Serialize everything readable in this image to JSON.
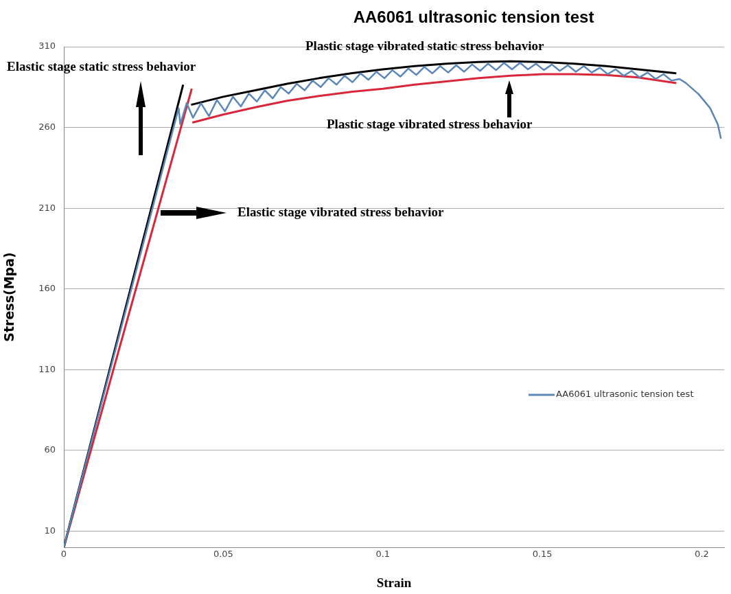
{
  "chart_data": {
    "type": "line",
    "title": "AA6061 ultrasonic tension test",
    "xlabel": "Strain",
    "ylabel": "Stress(Mpa)",
    "xlim": [
      0,
      0.207
    ],
    "xticks": [
      0,
      0.05,
      0.1,
      0.15,
      0.2
    ],
    "ylim": [
      0,
      310
    ],
    "yticks": [
      10,
      60,
      110,
      160,
      210,
      260,
      310
    ],
    "grid": "y",
    "legend": "right",
    "marker": "none",
    "line_style": "solid",
    "annotations": [
      "Elastic stage static stress behavior",
      "Plastic stage vibrated static stress behavior",
      "Plastic stage vibrated stress behavior",
      "Elastic stage vibrated stress behavior"
    ],
    "series": [
      {
        "name": "AA6061 ultrasonic tension test",
        "color": "#5b87b8",
        "x": [
          0,
          0.036,
          0.0365,
          0.0385,
          0.0405,
          0.043,
          0.0455,
          0.048,
          0.0505,
          0.053,
          0.0555,
          0.058,
          0.0605,
          0.063,
          0.0655,
          0.068,
          0.0705,
          0.073,
          0.0755,
          0.078,
          0.0805,
          0.083,
          0.0855,
          0.088,
          0.0905,
          0.093,
          0.0955,
          0.098,
          0.1005,
          0.103,
          0.1055,
          0.108,
          0.1105,
          0.113,
          0.1155,
          0.118,
          0.1205,
          0.123,
          0.1255,
          0.128,
          0.1305,
          0.133,
          0.1355,
          0.138,
          0.1405,
          0.143,
          0.1455,
          0.148,
          0.1505,
          0.153,
          0.1555,
          0.158,
          0.1605,
          0.163,
          0.1655,
          0.168,
          0.1705,
          0.173,
          0.1755,
          0.178,
          0.1805,
          0.183,
          0.1855,
          0.188,
          0.1905,
          0.193,
          0.195,
          0.199,
          0.2026,
          0.205,
          0.206
        ],
        "values": [
          0,
          272,
          262,
          275,
          266,
          275,
          267,
          277,
          270,
          279,
          273,
          281,
          276,
          283,
          278,
          285,
          281,
          287,
          283,
          289,
          285,
          290.5,
          286.5,
          292,
          288,
          293.5,
          289.5,
          294.5,
          290.5,
          295.5,
          291.5,
          296.5,
          292.5,
          297.5,
          293.5,
          298,
          294,
          298.5,
          294.5,
          299,
          295,
          299.5,
          295.5,
          300,
          296,
          300,
          296,
          299.5,
          295.5,
          299,
          295,
          298.5,
          294.5,
          298,
          294,
          297,
          293,
          296,
          292,
          295,
          291,
          294,
          290,
          293,
          289,
          290,
          287.5,
          280.6,
          272,
          262,
          253
        ]
      },
      {
        "color": "#000000",
        "x": [
          0,
          0.0374
        ],
        "values": [
          0,
          286.5
        ]
      },
      {
        "color": "#000000",
        "x": [
          0.0399,
          0.05,
          0.06,
          0.07,
          0.08,
          0.09,
          0.1,
          0.11,
          0.12,
          0.13,
          0.14,
          0.15,
          0.16,
          0.17,
          0.18,
          0.192
        ],
        "values": [
          274,
          279,
          283,
          287,
          290.5,
          293.5,
          296,
          298,
          299.5,
          300.5,
          301,
          300.5,
          299.5,
          298,
          296,
          293.5
        ]
      },
      {
        "color": "#d9263a",
        "x": [
          0,
          0.0401
        ],
        "values": [
          0,
          284
        ]
      },
      {
        "color": "#d9263a",
        "x": [
          0.0403,
          0.05,
          0.06,
          0.07,
          0.08,
          0.09,
          0.1,
          0.11,
          0.12,
          0.13,
          0.14,
          0.15,
          0.16,
          0.17,
          0.18,
          0.192
        ],
        "values": [
          263,
          268,
          272.5,
          276.5,
          279.5,
          282,
          284,
          286.5,
          288.5,
          290.5,
          292,
          293,
          293,
          292.5,
          291,
          287.5
        ]
      }
    ]
  }
}
